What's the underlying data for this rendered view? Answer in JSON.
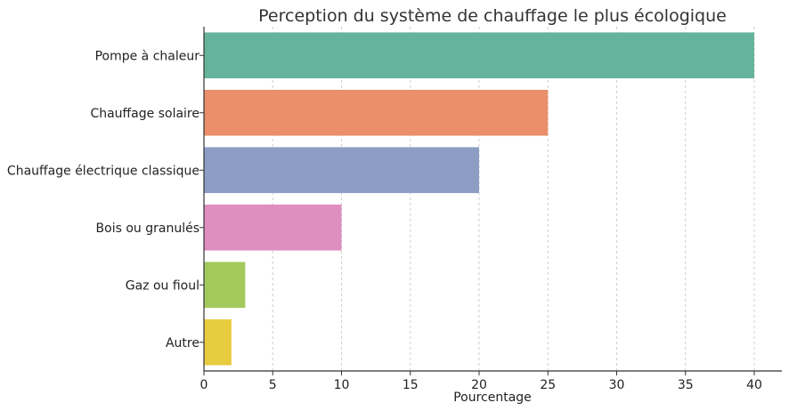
{
  "chart_data": {
    "type": "bar",
    "orientation": "horizontal",
    "title": "Perception du système de chauffage le plus écologique",
    "xlabel": "Pourcentage",
    "ylabel": "",
    "categories": [
      "Pompe à chaleur",
      "Chauffage solaire",
      "Chauffage électrique classique",
      "Bois ou granulés",
      "Gaz ou fioul",
      "Autre"
    ],
    "values": [
      40,
      25,
      20,
      10,
      3,
      2
    ],
    "colors": [
      "#66b39b",
      "#ea8f6a",
      "#8e9dc4",
      "#de8ebf",
      "#a3c95c",
      "#e8cc3f"
    ],
    "xlim": [
      0,
      42
    ],
    "xticks": [
      0,
      5,
      10,
      15,
      20,
      25,
      30,
      35,
      40
    ],
    "grid": "vertical dashed",
    "legend": "none"
  }
}
